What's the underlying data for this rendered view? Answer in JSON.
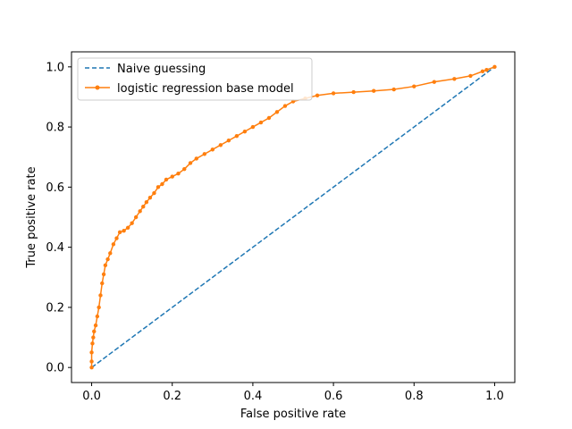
{
  "chart_data": {
    "type": "line",
    "title": "",
    "xlabel": "False positive rate",
    "ylabel": "True positive rate",
    "xlim": [
      -0.05,
      1.05
    ],
    "ylim": [
      -0.05,
      1.05
    ],
    "x_ticks": [
      0.0,
      0.2,
      0.4,
      0.6,
      0.8,
      1.0
    ],
    "y_ticks": [
      0.0,
      0.2,
      0.4,
      0.6,
      0.8,
      1.0
    ],
    "x_tick_labels": [
      "0.0",
      "0.2",
      "0.4",
      "0.6",
      "0.8",
      "1.0"
    ],
    "y_tick_labels": [
      "0.0",
      "0.2",
      "0.4",
      "0.6",
      "0.8",
      "1.0"
    ],
    "grid": false,
    "legend_position": "top-left",
    "series": [
      {
        "name": "Naive guessing",
        "color": "#1f77b4",
        "style": "dashed",
        "marker": "none",
        "x": [
          0,
          1
        ],
        "y": [
          0,
          1
        ]
      },
      {
        "name": "logistic regression base model",
        "color": "#ff7f0e",
        "style": "solid",
        "marker": "dot",
        "x": [
          0.0,
          0.0,
          0.0,
          0.002,
          0.004,
          0.006,
          0.01,
          0.014,
          0.018,
          0.022,
          0.026,
          0.03,
          0.034,
          0.04,
          0.046,
          0.054,
          0.062,
          0.07,
          0.08,
          0.09,
          0.1,
          0.11,
          0.12,
          0.128,
          0.136,
          0.145,
          0.155,
          0.165,
          0.175,
          0.185,
          0.2,
          0.215,
          0.23,
          0.245,
          0.26,
          0.28,
          0.3,
          0.32,
          0.34,
          0.36,
          0.38,
          0.4,
          0.42,
          0.44,
          0.46,
          0.48,
          0.5,
          0.53,
          0.56,
          0.6,
          0.65,
          0.7,
          0.75,
          0.8,
          0.85,
          0.9,
          0.94,
          0.97,
          0.98,
          1.0
        ],
        "y": [
          0.0,
          0.02,
          0.05,
          0.08,
          0.1,
          0.12,
          0.14,
          0.17,
          0.2,
          0.24,
          0.28,
          0.31,
          0.34,
          0.36,
          0.38,
          0.41,
          0.43,
          0.45,
          0.455,
          0.465,
          0.48,
          0.5,
          0.52,
          0.535,
          0.55,
          0.565,
          0.58,
          0.6,
          0.61,
          0.625,
          0.635,
          0.645,
          0.66,
          0.68,
          0.695,
          0.71,
          0.725,
          0.74,
          0.755,
          0.77,
          0.785,
          0.8,
          0.815,
          0.83,
          0.85,
          0.87,
          0.885,
          0.895,
          0.905,
          0.912,
          0.916,
          0.92,
          0.925,
          0.935,
          0.95,
          0.96,
          0.97,
          0.985,
          0.99,
          1.0
        ]
      }
    ]
  }
}
